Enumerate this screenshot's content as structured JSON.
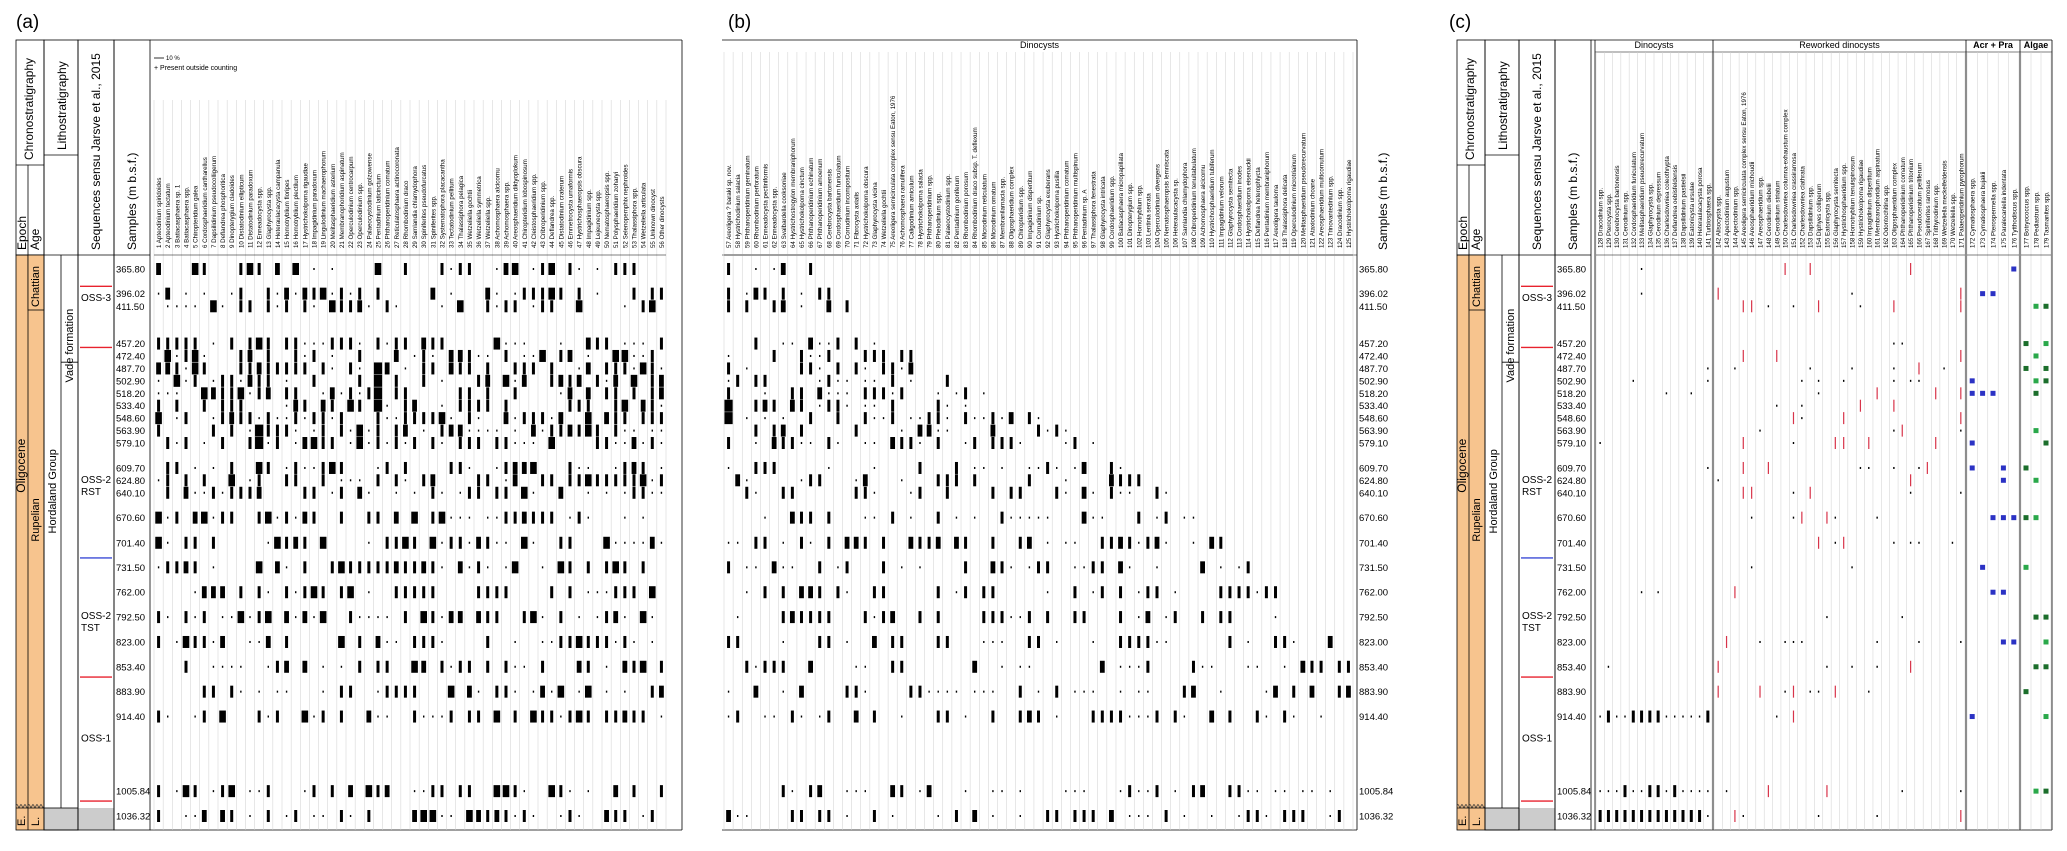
{
  "panel_labels": [
    "(a)",
    "(b)",
    "(c)"
  ],
  "strat": {
    "col_chrono": "Chronostratigraphy",
    "col_litho": "Lithostratigraphy",
    "col_epoch": "Epoch",
    "col_age": "Age",
    "col_seq": "Sequences sensu Jarsve et al., 2015",
    "col_samples": "Samples (m b.s.f.)",
    "epoch": "Oligocene",
    "ages": [
      "Chattian",
      "Rupelian"
    ],
    "bottom_e": "E.",
    "bottom_l": "L.",
    "formation": "Vade formation",
    "group": "Hordaland Group",
    "sequences": [
      "OSS-3",
      "OSS-2\nRST",
      "OSS-2\nTST",
      "OSS-1"
    ]
  },
  "legend": {
    "scale": "10 %",
    "present": "+ Present outside counting"
  },
  "headers": {
    "b_group": "Dinocysts",
    "c_groups": [
      "Dinocysts",
      "Reworked dinocysts",
      "Acr + Pra",
      "Algae"
    ]
  },
  "colors": {
    "orange": "#f7c48e",
    "red_line": "#e8222e",
    "blue_line": "#3b4bd6",
    "blue_marker": "#2b32c4",
    "green_marker": "#2aa84a",
    "dark_green": "#1b6e2b",
    "red_marker": "#d8344a",
    "gray_bottom": "#cccccc"
  },
  "chart_data": {
    "type": "table",
    "depths": [
      365.8,
      396.02,
      411.5,
      457.2,
      472.4,
      487.7,
      502.9,
      518.2,
      533.4,
      548.6,
      563.9,
      579.1,
      609.7,
      624.8,
      640.1,
      670.6,
      701.4,
      731.5,
      762.0,
      792.5,
      823.0,
      853.4,
      883.9,
      914.4,
      1005.84,
      1036.32
    ],
    "depth_labels": [
      "365.80",
      "396.02",
      "411.50",
      "457.20",
      "472.40",
      "487.70",
      "502.90",
      "518.20",
      "533.40",
      "548.60",
      "563.90",
      "579.10",
      "609.70",
      "624.80",
      "640.10",
      "670.60",
      "701.40",
      "731.50",
      "762.00",
      "792.50",
      "823.00",
      "853.40",
      "883.90",
      "914.40",
      "1005.84",
      "1036.32"
    ],
    "taxa_a": [
      "Apteodinium spiridoides",
      "Apteodinium tectatum",
      "Batiacasphaera sp. 1",
      "Batiacasphaera spp.",
      "Chiropteridium galea",
      "Cordosphaeridium cantharellus",
      "Dapsilidinium pseudocolligerum",
      "Deflandrea phosphoritica",
      "Dinopterygium cladoides",
      "Distatodinium ellipticum",
      "Distatodinium paradoxum",
      "Enneadocysta spp.",
      "Glaphyrocysta spp.",
      "Heteraulacacysta campanula",
      "Homotryblium floripes",
      "Homotryblium plectilum",
      "Hystrichokolpoma rigaudiae",
      "Impagidinium paradoxum",
      "Lingulodinium machaerophorum",
      "Melitasphaeridium asterium",
      "Membranophoridium aspinatum",
      "Operculodinium centrocarpum",
      "Operculodinium spp.",
      "Palaeocystodinium golzowense",
      "Pentadinium laticinctum",
      "Phthanoperidinium comatum",
      "Reticulatosphaera actinocoronata",
      "Rhombodinium draco",
      "Samlandia chlamydophora",
      "Spiniferites pseudofurcatus",
      "Spiniferites spp.",
      "Systematophora placacantha",
      "Tectatodinium pellitum",
      "Thalassiphora pelagica",
      "Wetzeliella gochtii",
      "Wetzeliella symmetrica",
      "Wetzeliella spp.",
      "Achomosphaera alcicornu",
      "Achomosphaera spp.",
      "Areosphaeridium diktyoplokum",
      "Chiropteridium lobospinosum",
      "Cleistosphaeridium spp.",
      "Cribroperidinium spp.",
      "Deflandrea spp.",
      "Distatodinium craterum",
      "Emmetrocysta urnaformis",
      "Hystrichosphaeropsis obscura",
      "Impagidinium spp.",
      "Lejeunecysta spp.",
      "Nematosphaeropsis spp.",
      "Polysphaeridium zoharyi",
      "Selenopemphix nephroides",
      "Thalassiphora spp.",
      "Wetzeliella articulata",
      "Unknown dinocyst",
      "Other dinocysts"
    ],
    "taxa_b": [
      "Areoligera ? baraki sp. nov.",
      "Hystrichodinium salacia",
      "Phthanoperidinium geminatum",
      "Rhombodinium perforatum",
      "Enneadocysta pectiniformis",
      "Enneadocysta spp.",
      "Svalbardella cooksoniae",
      "Hystrichostrogylon membraniphorum",
      "Hystrichokolpoma cinctum",
      "Phthanoperidinium echinatum",
      "Phthanoperidinium amoenum",
      "Cerebrocysta bartonensis",
      "Cordosphaeridium funiculatum",
      "Corrudinium incompositum",
      "Fibrocysta axialis",
      "Hystrichokolpoma obscura",
      "Glaphyrocysta vicina",
      "Wetzeliella gochtii",
      "Areoligera semicirculata complex sensu Eaton, 1976",
      "Achomosphaera ramulifera",
      "Caligodinium amiculum",
      "Hystrichokolpoma salacia",
      "Phthanoperidinium spp.",
      "Phelodinium spp.",
      "Palaeocystodinium spp.",
      "Pentadinium goniferum",
      "Rhombodinium porosum",
      "Rhombodinium draco subsp. T. deflexum",
      "Microdinium reticulatum",
      "Microdinium ornatum",
      "Membranilarnacia spp.",
      "Oligosphaeridium complex",
      "Chiropteridium spp.",
      "Impagidinium dispertitum",
      "Corrudinium sp.",
      "Glaphyrocysta exuberans",
      "Hystrichokolpoma pusilla",
      "Phthanoperidinium comatum",
      "Phthanoperidinium multispinum",
      "Pentadinium sp. A",
      "Thalassiphora fenestrata",
      "Glaphyrocysta intricata",
      "Cordosphaeridium spp.",
      "Batiacasphaera micropapillata",
      "Dinopterygium spp.",
      "Homotryblium spp.",
      "Lentinia serrata",
      "Operculodinium divergens",
      "Nematosphaeropsis lemniscata",
      "Heteraulacacysta sp.",
      "Samlandia chlamydophora",
      "Cribroperidinium tenuitabulatum",
      "Achomosphaera alcicornu",
      "Hystrichosphaeridium tubiferum",
      "Impagidinium velorum",
      "Glaphyrocysta semitecta",
      "Cordosphaeridium inodes",
      "Hystrichokolpoma eisenackii",
      "Deflandrea heterophlycta",
      "Pentadinium membraniphorum",
      "Areoligera tauloma",
      "Thalassiphora delicata",
      "Operculodinium microtriainum",
      "Melitasphaeridium pseudorecurvatum",
      "Ataxiodinium choane",
      "Areosphaeridium multicornutum",
      "Trinovantedinium spp.",
      "Dracodinium spp.",
      "Hystrichokolpoma rigaudiae"
    ],
    "taxa_c_dino": [
      "Dracodinium spp.",
      "Pterocysta spp.",
      "Cerebrocysta bartonensis",
      "Cerodinium spp.",
      "Cordosphaeridium funiculatum",
      "Melitasphaeridium pseudorecurvatum",
      "Glaphyrocysta spp.",
      "Cerodinium depressum",
      "Charlesdowniea coleothrypta",
      "Deflandrea oebisfeldensis",
      "Dapsilidinium pastielsii",
      "Eatonicysta ursulae",
      "Heteraulacacysta porosa",
      "Turbiosphaera spp."
    ],
    "taxa_c_rew": [
      "Alisocysta spp.",
      "Apectodinium augustum",
      "Apectodinium spp.",
      "Areoligera semicirculata complex sensu Eaton, 1976",
      "Areosphaeridium michoudii",
      "Areosphaeridium spp.",
      "Cerodinium diebelii",
      "Cerodinium striatum",
      "Charlesdowniea columna-exhaustum complex",
      "Charlesdowniea crassiramosa",
      "Charlesdowniea clathrata",
      "Dapsilidinium spp.",
      "Diphyes colligerum",
      "Eatonicysta spp.",
      "Glaphyrocysta semitecta",
      "Hystrichosphaeridium spp.",
      "Homotryblium tenuispinosum",
      "Hystrichokolpoma rigaudiae",
      "Impagidinium dispertitum",
      "Membranophoridium aspinatum",
      "Odontochitina spp.",
      "Oligosphaeridium complex",
      "Phthanoperidinium comatum",
      "Phthanoperidinium tritonium",
      "Pseudoceratium pelliferum",
      "Spiniferites ramosus",
      "Trithyrodinium spp.",
      "Wetzeliella meckelfeldensis",
      "Wetzeliella spp.",
      "Palaeoperidinium pyrophorum"
    ],
    "taxa_c_acr": [
      "Cymatiosphaera spp.",
      "Cymatiosphaera bujakii",
      "Pterospermella spp.",
      "Paralecaniella indentata",
      "Tytthodiscus spp."
    ],
    "taxa_c_alg": [
      "Botryococcus spp.",
      "Pediastrum spp.",
      "Tasmanites spp."
    ]
  }
}
